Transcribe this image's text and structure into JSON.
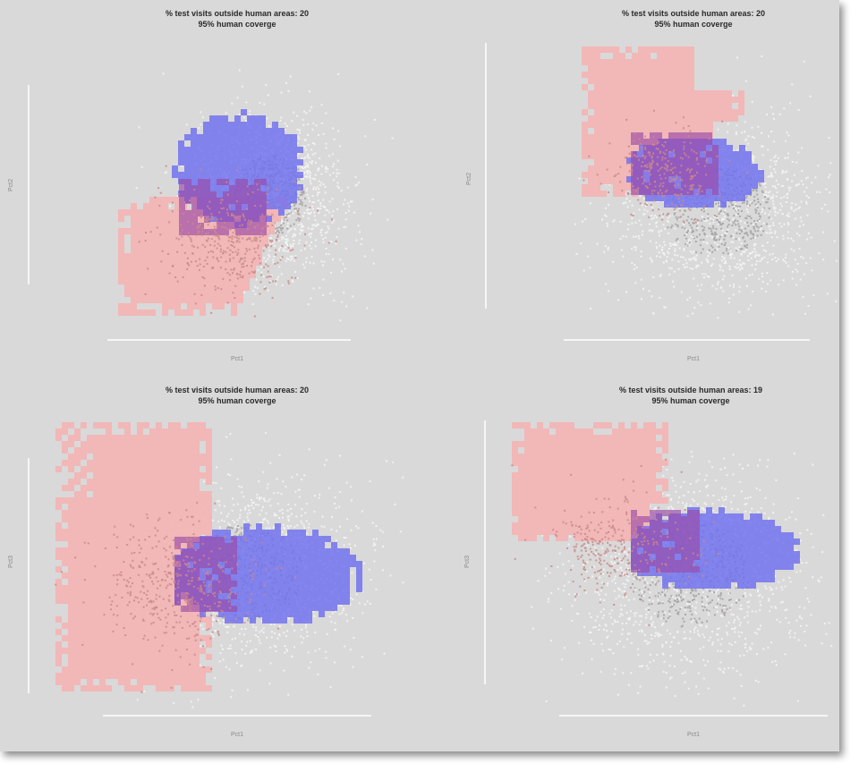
{
  "colors": {
    "background": "#d9d9d9",
    "human_region": "#f4b3b3",
    "human_points": "#c98a8a",
    "test_region": "#6f6ff0",
    "overlap_region": "#9a4aa8",
    "test_points": "#f2f2f2",
    "gray_points": "#a9a9a9"
  },
  "chart_data": [
    {
      "type": "heatmap",
      "title": "% test visits outside human areas: 20",
      "subtitle": "95% human coverge",
      "xlabel": "Pct1",
      "ylabel": "Pct2",
      "outside_pct": 20,
      "coverage": "95% human coverge",
      "grid": false,
      "layers": [
        "human area (pink)",
        "test area (blue)",
        "overlap (purple)",
        "test visits (gray/white points)"
      ]
    },
    {
      "type": "heatmap",
      "title": "% test visits outside human areas: 20",
      "subtitle": "95% human coverge",
      "xlabel": "Pct1",
      "ylabel": "Pct2",
      "outside_pct": 20,
      "coverage": "95% human coverge",
      "grid": false,
      "layers": [
        "human area (pink)",
        "test area (blue)",
        "overlap (purple)",
        "test visits (gray/white points)"
      ]
    },
    {
      "type": "heatmap",
      "title": "% test visits outside human areas: 20",
      "subtitle": "95% human coverge",
      "xlabel": "Pct1",
      "ylabel": "Pct3",
      "outside_pct": 20,
      "coverage": "95% human coverge",
      "grid": false,
      "layers": [
        "human area (pink)",
        "test area (blue)",
        "overlap (purple)",
        "test visits (gray/white points)"
      ]
    },
    {
      "type": "heatmap",
      "title": "% test visits outside human areas: 19",
      "subtitle": "95% human coverge",
      "xlabel": "Pct1",
      "ylabel": "Pct3",
      "outside_pct": 19,
      "coverage": "95% human coverge",
      "grid": false,
      "layers": [
        "human area (pink)",
        "test area (blue)",
        "overlap (purple)",
        "test visits (gray/white points)"
      ]
    }
  ]
}
